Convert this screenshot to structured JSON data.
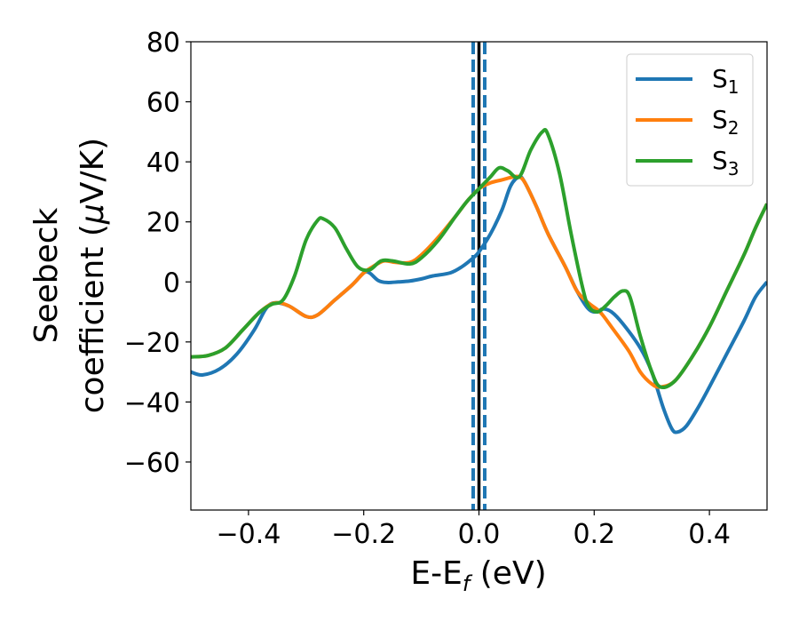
{
  "chart_data": {
    "type": "line",
    "title": "",
    "xlabel": {
      "base": "E-E",
      "sub": "f",
      "tail": " (eV)"
    },
    "ylabel": {
      "line1": "Seebeck",
      "line2_pre": "coefficient  (",
      "mu": "μ",
      "line2_post": "V/K)"
    },
    "xlim": [
      -0.5,
      0.5
    ],
    "ylim": [
      -76,
      80
    ],
    "xticks": [
      -0.4,
      -0.2,
      0.0,
      0.2,
      0.4
    ],
    "xtick_labels": [
      "−0.4",
      "−0.2",
      "0.0",
      "0.2",
      "0.4"
    ],
    "yticks": [
      80,
      60,
      40,
      20,
      0,
      -20,
      -40,
      -60
    ],
    "ytick_labels": [
      "80",
      "60",
      "40",
      "20",
      "0",
      "−20",
      "−40",
      "−60"
    ],
    "grid": false,
    "legend_position": "top-right",
    "vlines": [
      {
        "x": 0.0,
        "style": "solid",
        "color": "#000000"
      },
      {
        "x": -0.01,
        "style": "dashed",
        "color": "#1f77b4"
      },
      {
        "x": 0.01,
        "style": "dashed",
        "color": "#1f77b4"
      }
    ],
    "series": [
      {
        "name": "S1",
        "label_base": "S",
        "label_sub": "1",
        "color": "#1f77b4",
        "points": [
          [
            -0.5,
            -30
          ],
          [
            -0.48,
            -31
          ],
          [
            -0.45,
            -29
          ],
          [
            -0.42,
            -24
          ],
          [
            -0.39,
            -16
          ],
          [
            -0.37,
            -9
          ],
          [
            -0.355,
            -7
          ],
          [
            -0.33,
            -8
          ],
          [
            -0.3,
            -11.5
          ],
          [
            -0.28,
            -11
          ],
          [
            -0.25,
            -6
          ],
          [
            -0.22,
            -1
          ],
          [
            -0.2,
            3
          ],
          [
            -0.19,
            3
          ],
          [
            -0.175,
            0.5
          ],
          [
            -0.16,
            -0.2
          ],
          [
            -0.14,
            0
          ],
          [
            -0.12,
            0.3
          ],
          [
            -0.1,
            1
          ],
          [
            -0.08,
            2
          ],
          [
            -0.05,
            3
          ],
          [
            -0.03,
            5
          ],
          [
            -0.01,
            8
          ],
          [
            0.0,
            10
          ],
          [
            0.02,
            16
          ],
          [
            0.04,
            24
          ],
          [
            0.055,
            32
          ],
          [
            0.07,
            35
          ],
          [
            0.08,
            33
          ],
          [
            0.1,
            25
          ],
          [
            0.12,
            16
          ],
          [
            0.15,
            5
          ],
          [
            0.17,
            -3
          ],
          [
            0.19,
            -9
          ],
          [
            0.205,
            -10
          ],
          [
            0.215,
            -9
          ],
          [
            0.23,
            -10
          ],
          [
            0.25,
            -14
          ],
          [
            0.28,
            -22
          ],
          [
            0.3,
            -30
          ],
          [
            0.32,
            -42
          ],
          [
            0.335,
            -49
          ],
          [
            0.345,
            -50
          ],
          [
            0.36,
            -48
          ],
          [
            0.38,
            -42
          ],
          [
            0.4,
            -35
          ],
          [
            0.43,
            -24
          ],
          [
            0.46,
            -13
          ],
          [
            0.48,
            -5
          ],
          [
            0.5,
            0
          ]
        ]
      },
      {
        "name": "S2",
        "label_base": "S",
        "label_sub": "2",
        "color": "#ff7f0e",
        "points": [
          [
            -0.5,
            -25
          ],
          [
            -0.47,
            -24.5
          ],
          [
            -0.44,
            -22
          ],
          [
            -0.41,
            -16
          ],
          [
            -0.38,
            -10
          ],
          [
            -0.355,
            -7
          ],
          [
            -0.33,
            -8
          ],
          [
            -0.3,
            -11.5
          ],
          [
            -0.28,
            -11
          ],
          [
            -0.25,
            -6
          ],
          [
            -0.22,
            -1
          ],
          [
            -0.2,
            3
          ],
          [
            -0.185,
            5
          ],
          [
            -0.165,
            7
          ],
          [
            -0.145,
            6.5
          ],
          [
            -0.12,
            6.5
          ],
          [
            -0.1,
            9
          ],
          [
            -0.07,
            15
          ],
          [
            -0.04,
            22
          ],
          [
            -0.02,
            27
          ],
          [
            0.0,
            31
          ],
          [
            0.02,
            33
          ],
          [
            0.04,
            34
          ],
          [
            0.06,
            35
          ],
          [
            0.07,
            35
          ],
          [
            0.08,
            33
          ],
          [
            0.1,
            25
          ],
          [
            0.12,
            16
          ],
          [
            0.15,
            5
          ],
          [
            0.17,
            -3
          ],
          [
            0.19,
            -7
          ],
          [
            0.21,
            -10
          ],
          [
            0.23,
            -15
          ],
          [
            0.26,
            -23
          ],
          [
            0.28,
            -30
          ],
          [
            0.3,
            -34
          ],
          [
            0.315,
            -35
          ],
          [
            0.34,
            -33
          ],
          [
            0.37,
            -25
          ],
          [
            0.4,
            -15
          ],
          [
            0.43,
            -3
          ],
          [
            0.46,
            9
          ],
          [
            0.48,
            18
          ],
          [
            0.5,
            26
          ]
        ]
      },
      {
        "name": "S3",
        "label_base": "S",
        "label_sub": "3",
        "color": "#2ca02c",
        "points": [
          [
            -0.5,
            -25
          ],
          [
            -0.47,
            -24.5
          ],
          [
            -0.44,
            -22
          ],
          [
            -0.41,
            -16
          ],
          [
            -0.38,
            -10
          ],
          [
            -0.36,
            -7.5
          ],
          [
            -0.34,
            -6
          ],
          [
            -0.32,
            2
          ],
          [
            -0.3,
            14
          ],
          [
            -0.28,
            20.5
          ],
          [
            -0.27,
            21
          ],
          [
            -0.25,
            18
          ],
          [
            -0.23,
            11
          ],
          [
            -0.21,
            5
          ],
          [
            -0.19,
            4
          ],
          [
            -0.17,
            7
          ],
          [
            -0.15,
            7
          ],
          [
            -0.12,
            6
          ],
          [
            -0.1,
            8
          ],
          [
            -0.07,
            14
          ],
          [
            -0.04,
            22
          ],
          [
            -0.02,
            27
          ],
          [
            0.0,
            31
          ],
          [
            0.02,
            35
          ],
          [
            0.035,
            38
          ],
          [
            0.05,
            37
          ],
          [
            0.07,
            35
          ],
          [
            0.09,
            44
          ],
          [
            0.11,
            50
          ],
          [
            0.12,
            49
          ],
          [
            0.14,
            36
          ],
          [
            0.16,
            16
          ],
          [
            0.18,
            -2
          ],
          [
            0.19,
            -8
          ],
          [
            0.205,
            -10
          ],
          [
            0.22,
            -8
          ],
          [
            0.235,
            -5
          ],
          [
            0.25,
            -3
          ],
          [
            0.262,
            -5
          ],
          [
            0.28,
            -18
          ],
          [
            0.3,
            -30
          ],
          [
            0.315,
            -35
          ],
          [
            0.34,
            -33
          ],
          [
            0.37,
            -25
          ],
          [
            0.4,
            -15
          ],
          [
            0.43,
            -3
          ],
          [
            0.46,
            9
          ],
          [
            0.48,
            18
          ],
          [
            0.5,
            26
          ]
        ]
      }
    ]
  }
}
